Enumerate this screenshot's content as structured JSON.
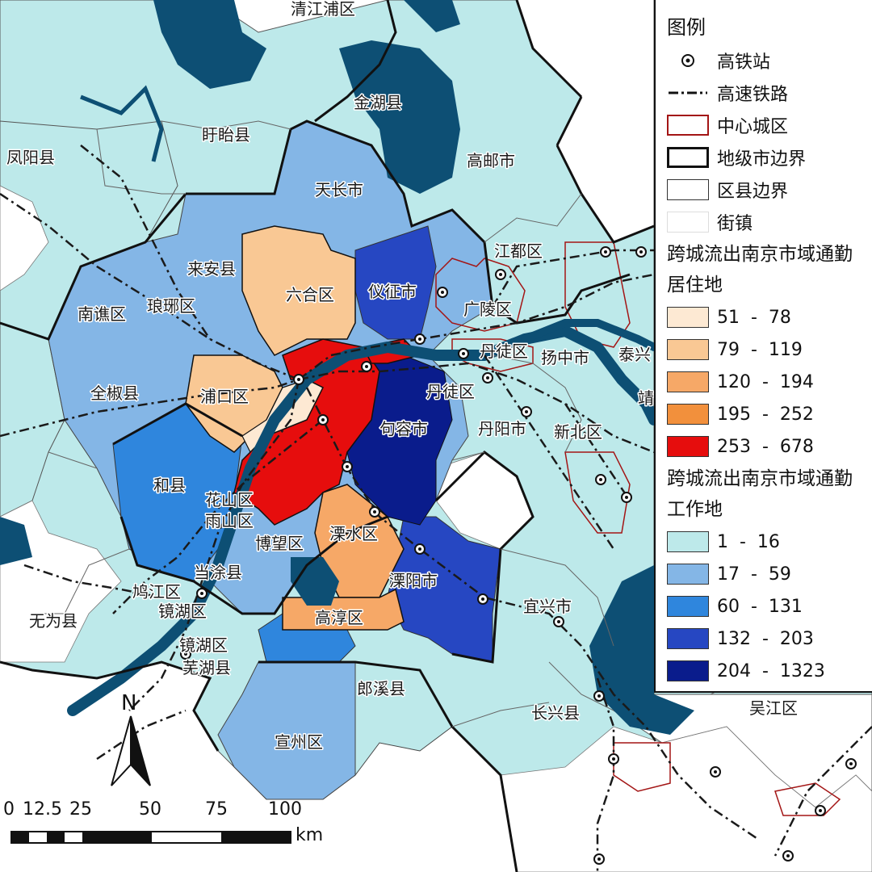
{
  "legend": {
    "title": "图例",
    "symbols": [
      {
        "label": "高铁站",
        "icon": "station-dot-icon"
      },
      {
        "label": "高速铁路",
        "icon": "railway-line-icon"
      },
      {
        "label": "中心城区",
        "icon": "urban-core-outline-icon"
      },
      {
        "label": "地级市边界",
        "icon": "prefecture-boundary-icon"
      },
      {
        "label": "区县边界",
        "icon": "county-boundary-icon"
      },
      {
        "label": "街镇",
        "icon": "town-fill-icon"
      }
    ],
    "residence_heading": "跨城流出南京市域通勤居住地",
    "residence_classes": [
      {
        "label": "51  -  78",
        "color": "#fde9d3"
      },
      {
        "label": "79  -  119",
        "color": "#f9c894"
      },
      {
        "label": "120  -  194",
        "color": "#f6a867"
      },
      {
        "label": "195  -  252",
        "color": "#f2903c"
      },
      {
        "label": "253  -  678",
        "color": "#e60d0d"
      }
    ],
    "workplace_heading": "跨城流出南京市域通勤工作地",
    "workplace_classes": [
      {
        "label": "1  -  16",
        "color": "#bde9ea"
      },
      {
        "label": "17  -  59",
        "color": "#84b6e6"
      },
      {
        "label": "60  -  131",
        "color": "#2f86dd"
      },
      {
        "label": "132  -  203",
        "color": "#2647c2"
      },
      {
        "label": "204  -  1323",
        "color": "#0a1c8c"
      }
    ]
  },
  "colors": {
    "water": "#0d4f74",
    "town_fill": "#ffffff",
    "boundary": "#1a1a1a",
    "urban_core": "#a31515",
    "rail": "#1a1a1a"
  },
  "places": [
    {
      "name": "清江浦区"
    },
    {
      "name": "金湖县"
    },
    {
      "name": "盱眙县"
    },
    {
      "name": "凤阳县"
    },
    {
      "name": "高邮市"
    },
    {
      "name": "天长市"
    },
    {
      "name": "来安县"
    },
    {
      "name": "六合区"
    },
    {
      "name": "仪征市"
    },
    {
      "name": "江都区"
    },
    {
      "name": "广陵区"
    },
    {
      "name": "南谯区"
    },
    {
      "name": "琅琊区"
    },
    {
      "name": "丹徒区"
    },
    {
      "name": "扬中市"
    },
    {
      "name": "泰兴"
    },
    {
      "name": "全椒县"
    },
    {
      "name": "浦口区"
    },
    {
      "name": "丹徒区"
    },
    {
      "name": "句容市"
    },
    {
      "name": "丹阳市"
    },
    {
      "name": "新北区"
    },
    {
      "name": "和县"
    },
    {
      "name": "花山区"
    },
    {
      "name": "雨山区"
    },
    {
      "name": "溧水区"
    },
    {
      "name": "博望区"
    },
    {
      "name": "当涂县"
    },
    {
      "name": "溧阳市"
    },
    {
      "name": "鸠江区"
    },
    {
      "name": "镜湖区"
    },
    {
      "name": "宜兴市"
    },
    {
      "name": "无为县"
    },
    {
      "name": "高淳区"
    },
    {
      "name": "镜湖区"
    },
    {
      "name": "芜湖县"
    },
    {
      "name": "郎溪县"
    },
    {
      "name": "长兴县"
    },
    {
      "name": "吴江区"
    },
    {
      "name": "宣州区"
    },
    {
      "name": "靖"
    }
  ],
  "scale": {
    "ticks": [
      "0",
      "12.5",
      "25",
      "50",
      "75",
      "100"
    ],
    "unit": "km"
  },
  "north_label": "N"
}
